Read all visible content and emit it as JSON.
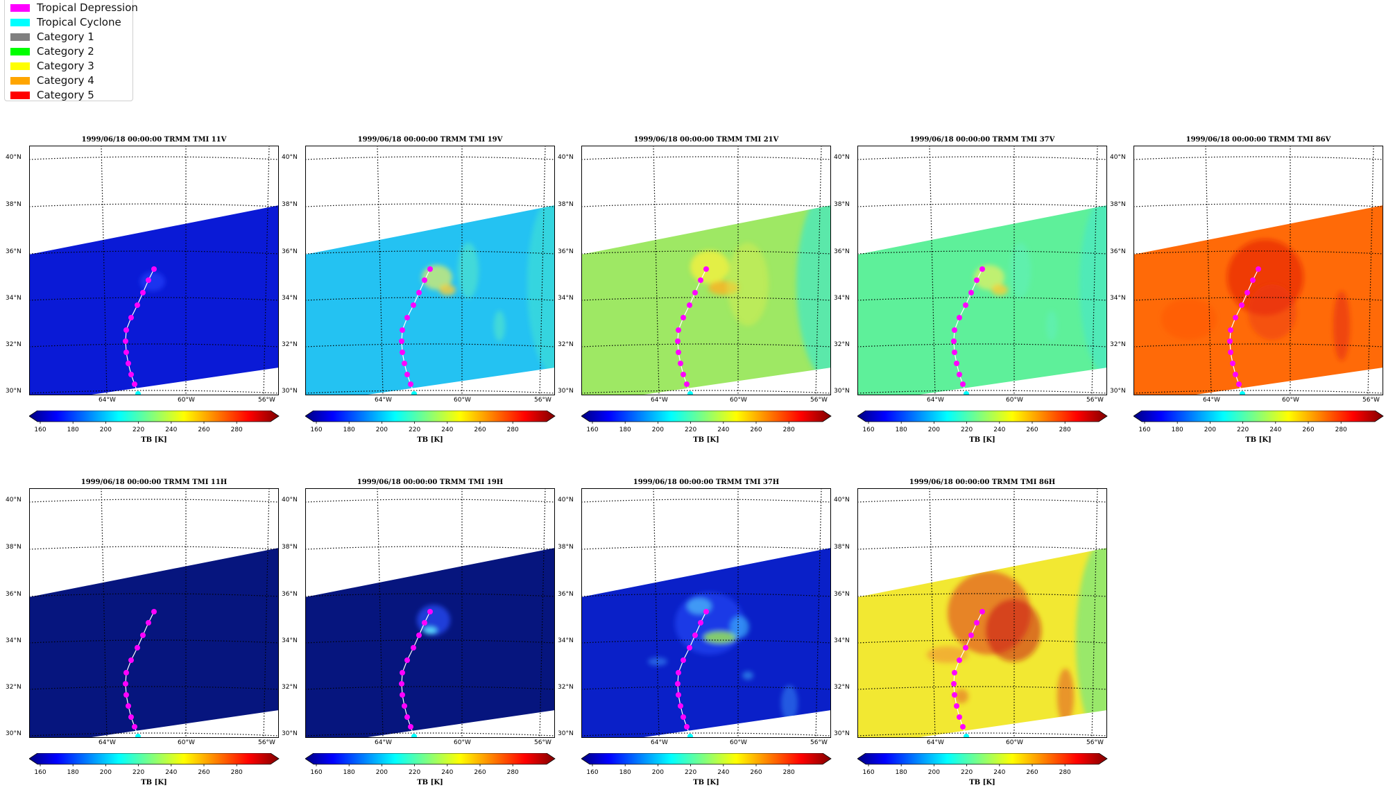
{
  "legend": {
    "items": [
      {
        "label": "Tropical Depression",
        "color": "#ff00ff"
      },
      {
        "label": "Tropical Cyclone",
        "color": "#00ffff"
      },
      {
        "label": "Category 1",
        "color": "#808080"
      },
      {
        "label": "Category 2",
        "color": "#00ff00"
      },
      {
        "label": "Category 3",
        "color": "#ffff00"
      },
      {
        "label": "Category 4",
        "color": "#ffa500"
      },
      {
        "label": "Category 5",
        "color": "#ff0000"
      }
    ]
  },
  "lat_labels": [
    "40°N",
    "38°N",
    "36°N",
    "34°N",
    "32°N",
    "30°N"
  ],
  "lon_labels": [
    "64°W",
    "60°W",
    "56°W"
  ],
  "colorbar": {
    "ticks": [
      "160",
      "180",
      "200",
      "220",
      "240",
      "260",
      "280"
    ],
    "label": "TB [K]"
  },
  "panels": [
    {
      "title": "1999/06/18 00:00:00  TRMM TMI 11V",
      "base": "#0a1ad6",
      "features": "faint"
    },
    {
      "title": "1999/06/18 00:00:00  TRMM TMI 19V",
      "base": "#24c2f2",
      "features": "light"
    },
    {
      "title": "1999/06/18 00:00:00  TRMM TMI 21V",
      "base": "#9ee864",
      "features": "yellow"
    },
    {
      "title": "1999/06/18 00:00:00  TRMM TMI 37V",
      "base": "#5ef09a",
      "features": "light"
    },
    {
      "title": "1999/06/18 00:00:00  TRMM TMI 86V",
      "base": "#ff6a08",
      "features": "red"
    },
    {
      "title": "1999/06/18 00:00:00  TRMM TMI 11H",
      "base": "#06157e",
      "features": "none"
    },
    {
      "title": "1999/06/18 00:00:00  TRMM TMI 19H",
      "base": "#06157e",
      "features": "blue"
    },
    {
      "title": "1999/06/18 00:00:00  TRMM TMI 37H",
      "base": "#0a20c8",
      "features": "swirl"
    },
    {
      "title": "1999/06/18 00:00:00  TRMM TMI 86H",
      "base": "#f2e832",
      "features": "redlarge"
    }
  ]
}
